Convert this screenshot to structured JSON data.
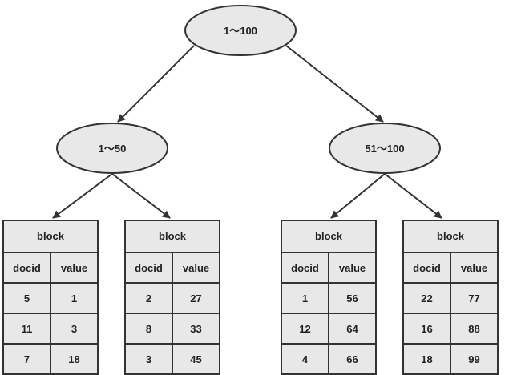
{
  "tree": {
    "root": {
      "label": "1～100"
    },
    "children": [
      {
        "label": "1～50"
      },
      {
        "label": "51～100"
      }
    ]
  },
  "blocks": [
    {
      "title": "block",
      "columns": [
        "docid",
        "value"
      ],
      "rows": [
        [
          "5",
          "1"
        ],
        [
          "11",
          "3"
        ],
        [
          "7",
          "18"
        ]
      ]
    },
    {
      "title": "block",
      "columns": [
        "docid",
        "value"
      ],
      "rows": [
        [
          "2",
          "27"
        ],
        [
          "8",
          "33"
        ],
        [
          "3",
          "45"
        ]
      ]
    },
    {
      "title": "block",
      "columns": [
        "docid",
        "value"
      ],
      "rows": [
        [
          "1",
          "56"
        ],
        [
          "12",
          "64"
        ],
        [
          "4",
          "66"
        ]
      ]
    },
    {
      "title": "block",
      "columns": [
        "docid",
        "value"
      ],
      "rows": [
        [
          "22",
          "77"
        ],
        [
          "16",
          "88"
        ],
        [
          "18",
          "99"
        ]
      ]
    }
  ]
}
